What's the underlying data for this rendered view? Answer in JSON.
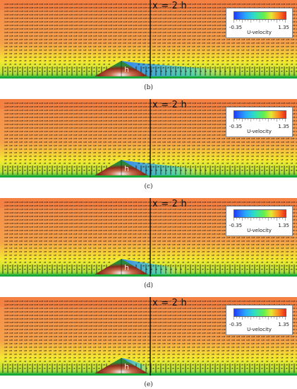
{
  "panels": [
    {
      "label": "(b)",
      "marker": "x = 2 h",
      "hill_label": "h",
      "legend": {
        "min": "-0.35",
        "max": "1.35",
        "title": "U-velocity"
      },
      "recirculation_extent": 1.0
    },
    {
      "label": "(c)",
      "marker": "x = 2 h",
      "hill_label": "h",
      "legend": {
        "min": "-0.35",
        "max": "1.35",
        "title": "U-velocity"
      },
      "recirculation_extent": 0.7
    },
    {
      "label": "(d)",
      "marker": "x = 2 h",
      "hill_label": "h",
      "legend": {
        "min": "-0.35",
        "max": "1.35",
        "title": "U-velocity"
      },
      "recirculation_extent": 0.45
    },
    {
      "label": "(e)",
      "marker": "x = 2 h",
      "hill_label": "h",
      "legend": {
        "min": "-0.35",
        "max": "1.35",
        "title": "U-velocity"
      },
      "recirculation_extent": 0.1
    }
  ],
  "colors": {
    "free_stream": "#f58a4a",
    "near_wall": "#f5e830",
    "wall": "#1aa83a",
    "reverse_flow": "#2a7cff",
    "hill_peak": "#8a2a1a"
  }
}
